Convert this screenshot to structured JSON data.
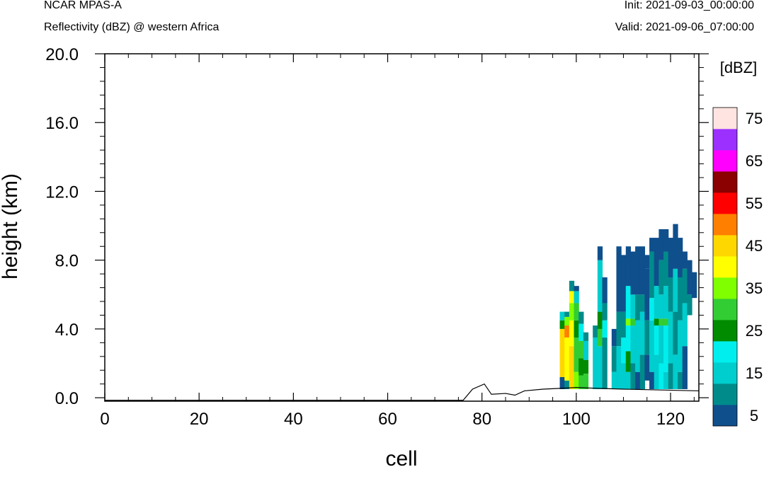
{
  "header": {
    "model": "NCAR MPAS-A",
    "field": "Reflectivity (dBZ) @ western Africa",
    "init": "Init: 2021-09-03_00:00:00",
    "valid": "Valid: 2021-09-06_07:00:00"
  },
  "chart_data": {
    "type": "heatmap",
    "xlabel": "cell",
    "ylabel": "height (km)",
    "xlim": [
      0,
      126
    ],
    "ylim": [
      -0.2,
      20.0
    ],
    "x_ticks": [
      "0",
      "20",
      "40",
      "60",
      "80",
      "100",
      "120"
    ],
    "y_ticks": [
      "0.0",
      "4.0",
      "8.0",
      "12.0",
      "16.0",
      "20.0"
    ],
    "colorbar": {
      "unit_label": "[dBZ]",
      "levels": [
        5,
        10,
        15,
        20,
        25,
        30,
        35,
        40,
        45,
        50,
        55,
        60,
        65,
        70,
        75
      ],
      "tick_labels": [
        "5",
        "15",
        "25",
        "35",
        "45",
        "55",
        "65",
        "75"
      ],
      "colors": [
        "#0f4f8c",
        "#008b8b",
        "#00cdcd",
        "#00eeee",
        "#008b00",
        "#32cd32",
        "#7fff00",
        "#ffff00",
        "#ffd700",
        "#ff7f00",
        "#ff0000",
        "#8b0000",
        "#ff00ff",
        "#9b30ff",
        "#ffe4e1"
      ]
    },
    "terrain_km": [
      [
        0,
        -0.15
      ],
      [
        76,
        -0.15
      ],
      [
        78,
        0.5
      ],
      [
        80.5,
        0.8
      ],
      [
        82,
        0.2
      ],
      [
        85,
        0.25
      ],
      [
        87,
        0.15
      ],
      [
        89,
        0.4
      ],
      [
        93,
        0.5
      ],
      [
        97,
        0.55
      ],
      [
        100,
        0.6
      ],
      [
        104,
        0.55
      ],
      [
        110,
        0.5
      ],
      [
        118,
        0.45
      ],
      [
        126,
        0.4
      ]
    ],
    "columns": [
      {
        "cell": 97,
        "segments": [
          [
            0.5,
            1.2,
            5
          ],
          [
            1.2,
            4.0,
            45
          ],
          [
            4.0,
            4.5,
            25
          ],
          [
            4.5,
            5.0,
            15
          ]
        ]
      },
      {
        "cell": 98,
        "segments": [
          [
            0.5,
            1.0,
            10
          ],
          [
            1.0,
            3.5,
            40
          ],
          [
            3.5,
            4.2,
            50
          ],
          [
            4.2,
            4.7,
            35
          ],
          [
            4.7,
            5.0,
            10
          ]
        ]
      },
      {
        "cell": 99,
        "segments": [
          [
            0.5,
            3.0,
            45
          ],
          [
            3.0,
            4.5,
            40
          ],
          [
            4.5,
            5.5,
            35
          ],
          [
            5.5,
            6.2,
            40
          ],
          [
            6.2,
            6.8,
            10
          ]
        ]
      },
      {
        "cell": 100,
        "segments": [
          [
            0.5,
            1.5,
            35
          ],
          [
            1.5,
            3.5,
            30
          ],
          [
            3.5,
            4.5,
            25
          ],
          [
            4.5,
            5.5,
            30
          ],
          [
            5.5,
            6.2,
            15
          ],
          [
            6.2,
            6.5,
            5
          ]
        ]
      },
      {
        "cell": 101,
        "segments": [
          [
            0.5,
            1.3,
            30
          ],
          [
            1.3,
            2.3,
            25
          ],
          [
            2.3,
            3.3,
            30
          ],
          [
            3.3,
            4.3,
            20
          ],
          [
            4.3,
            5.0,
            10
          ]
        ]
      },
      {
        "cell": 102,
        "segments": [
          [
            0.5,
            1.4,
            30
          ],
          [
            1.4,
            2.2,
            25
          ],
          [
            2.2,
            3.3,
            15
          ],
          [
            3.3,
            3.8,
            10
          ]
        ]
      },
      {
        "cell": 104,
        "segments": [
          [
            0.5,
            3.5,
            15
          ],
          [
            3.5,
            4.2,
            10
          ]
        ]
      },
      {
        "cell": 105,
        "segments": [
          [
            0.5,
            3.0,
            15
          ],
          [
            3.0,
            4.0,
            30
          ],
          [
            4.0,
            5.0,
            25
          ],
          [
            5.0,
            8.0,
            15
          ],
          [
            8.0,
            8.8,
            5
          ]
        ]
      },
      {
        "cell": 106,
        "segments": [
          [
            0.5,
            3.5,
            10
          ],
          [
            3.5,
            4.5,
            20
          ],
          [
            4.5,
            5.5,
            10
          ],
          [
            5.5,
            7.0,
            5
          ]
        ]
      },
      {
        "cell": 108,
        "segments": [
          [
            0.5,
            1.5,
            15
          ],
          [
            1.5,
            3.0,
            10
          ],
          [
            3.0,
            4.0,
            5
          ]
        ]
      },
      {
        "cell": 109,
        "segments": [
          [
            0.5,
            3.0,
            15
          ],
          [
            3.0,
            5.0,
            10
          ],
          [
            5.0,
            8.8,
            5
          ]
        ]
      },
      {
        "cell": 110,
        "segments": [
          [
            0.5,
            2.0,
            15
          ],
          [
            2.0,
            3.5,
            20
          ],
          [
            3.5,
            5.0,
            10
          ],
          [
            5.0,
            8.3,
            5
          ]
        ]
      },
      {
        "cell": 111,
        "segments": [
          [
            0.5,
            1.5,
            15
          ],
          [
            1.5,
            2.7,
            25
          ],
          [
            2.7,
            4.2,
            20
          ],
          [
            4.2,
            4.6,
            35
          ],
          [
            4.6,
            6.5,
            20
          ],
          [
            6.5,
            8.8,
            5
          ]
        ]
      },
      {
        "cell": 112,
        "segments": [
          [
            0.5,
            2.0,
            10
          ],
          [
            2.0,
            4.2,
            15
          ],
          [
            4.2,
            4.6,
            30
          ],
          [
            4.6,
            6.0,
            15
          ],
          [
            6.0,
            8.5,
            5
          ]
        ]
      },
      {
        "cell": 113,
        "segments": [
          [
            0.5,
            1.5,
            5
          ],
          [
            1.5,
            4.5,
            15
          ],
          [
            4.5,
            6.0,
            10
          ],
          [
            6.0,
            8.8,
            5
          ]
        ]
      },
      {
        "cell": 114,
        "segments": [
          [
            0.5,
            2.5,
            10
          ],
          [
            2.5,
            5.0,
            15
          ],
          [
            5.0,
            6.0,
            10
          ],
          [
            6.0,
            8.8,
            5
          ]
        ]
      },
      {
        "cell": 115,
        "segments": [
          [
            1.0,
            2.5,
            5
          ],
          [
            2.5,
            4.5,
            10
          ],
          [
            4.5,
            7.5,
            5
          ],
          [
            7.5,
            8.3,
            5
          ]
        ]
      },
      {
        "cell": 116,
        "segments": [
          [
            0.5,
            1.5,
            5
          ],
          [
            1.5,
            4.5,
            15
          ],
          [
            4.5,
            5.8,
            20
          ],
          [
            5.8,
            8.5,
            10
          ],
          [
            8.5,
            9.3,
            5
          ]
        ]
      },
      {
        "cell": 117,
        "segments": [
          [
            0.5,
            2.5,
            15
          ],
          [
            2.5,
            4.2,
            20
          ],
          [
            4.2,
            4.6,
            25
          ],
          [
            4.6,
            6.5,
            15
          ],
          [
            6.5,
            9.3,
            5
          ]
        ]
      },
      {
        "cell": 118,
        "segments": [
          [
            0.5,
            2.0,
            20
          ],
          [
            2.0,
            4.2,
            15
          ],
          [
            4.2,
            4.6,
            30
          ],
          [
            4.6,
            6.0,
            15
          ],
          [
            6.0,
            8.0,
            10
          ],
          [
            8.0,
            9.8,
            5
          ]
        ]
      },
      {
        "cell": 119,
        "segments": [
          [
            0.5,
            1.5,
            15
          ],
          [
            1.5,
            4.2,
            20
          ],
          [
            4.2,
            4.6,
            30
          ],
          [
            4.6,
            6.5,
            15
          ],
          [
            6.5,
            8.5,
            10
          ],
          [
            8.5,
            9.8,
            5
          ]
        ]
      },
      {
        "cell": 120,
        "segments": [
          [
            0.5,
            2.0,
            10
          ],
          [
            2.0,
            5.0,
            15
          ],
          [
            5.0,
            7.0,
            10
          ],
          [
            7.0,
            9.3,
            5
          ]
        ]
      },
      {
        "cell": 121,
        "segments": [
          [
            0.5,
            2.5,
            15
          ],
          [
            2.5,
            5.0,
            10
          ],
          [
            5.0,
            7.5,
            15
          ],
          [
            7.5,
            10.1,
            5
          ]
        ]
      },
      {
        "cell": 122,
        "segments": [
          [
            0.5,
            1.5,
            10
          ],
          [
            1.5,
            4.5,
            15
          ],
          [
            4.5,
            7.0,
            10
          ],
          [
            7.0,
            9.3,
            5
          ]
        ]
      },
      {
        "cell": 123,
        "segments": [
          [
            0.5,
            3.0,
            5
          ],
          [
            3.0,
            5.5,
            15
          ],
          [
            5.5,
            7.5,
            10
          ],
          [
            7.5,
            8.5,
            5
          ]
        ]
      },
      {
        "cell": 124,
        "segments": [
          [
            4.8,
            6.0,
            10
          ],
          [
            6.0,
            8.0,
            5
          ]
        ]
      },
      {
        "cell": 125,
        "segments": [
          [
            5.8,
            7.3,
            5
          ]
        ]
      }
    ]
  }
}
